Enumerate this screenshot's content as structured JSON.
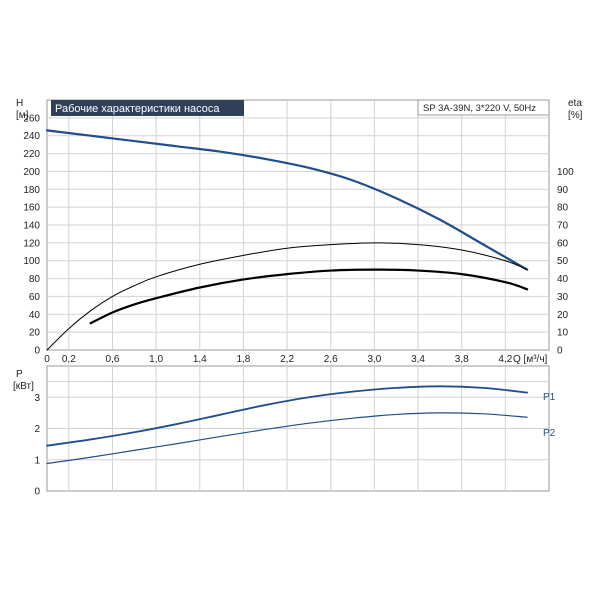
{
  "chart_data": [
    {
      "type": "line",
      "title": "Рабочие характеристики насоса",
      "model_label": "SP 3A-39N, 3*220 V, 50Hz",
      "xlabel": "Q [м³/ч]",
      "ylabel_left_symbol": "H",
      "ylabel_left_unit": "[м]",
      "ylabel_right_symbol": "eta",
      "ylabel_right_unit": "[%]",
      "xlim": [
        0,
        4.6
      ],
      "ylim_left": [
        0,
        280
      ],
      "ylim_right": [
        0,
        140
      ],
      "x_ticks": [
        "0",
        "0,2",
        "0,6",
        "1,0",
        "1,4",
        "1,8",
        "2,2",
        "2,6",
        "3,0",
        "3,4",
        "3,8",
        "4,2"
      ],
      "x_tick_values": [
        0,
        0.2,
        0.6,
        1.0,
        1.4,
        1.8,
        2.2,
        2.6,
        3.0,
        3.4,
        3.8,
        4.2
      ],
      "y_left_ticks": [
        0,
        20,
        40,
        60,
        80,
        100,
        120,
        140,
        160,
        180,
        200,
        220,
        240,
        260
      ],
      "y_right_ticks": [
        0,
        10,
        20,
        30,
        40,
        50,
        60,
        70,
        80,
        90,
        100
      ],
      "grid": true,
      "series": [
        {
          "axis": "left",
          "color": "#1f4e8c",
          "x": [
            0,
            0.4,
            0.8,
            1.2,
            1.6,
            2.0,
            2.4,
            2.8,
            3.2,
            3.6,
            4.0,
            4.4
          ],
          "values": [
            246,
            240,
            234,
            228,
            222,
            214,
            204,
            190,
            170,
            146,
            118,
            90
          ]
        },
        {
          "axis": "right",
          "color": "#000000",
          "x": [
            0,
            0.2,
            0.4,
            0.6,
            0.8,
            1.0,
            1.4,
            1.8,
            2.2,
            2.6,
            3.0,
            3.4,
            3.8,
            4.2,
            4.4
          ],
          "values": [
            0,
            12,
            22,
            30,
            36,
            41,
            48,
            53,
            57,
            59,
            60,
            59,
            56,
            50,
            45
          ]
        },
        {
          "axis": "right",
          "color": "#000000",
          "bold": true,
          "x": [
            0.4,
            0.6,
            0.8,
            1.0,
            1.4,
            1.8,
            2.2,
            2.6,
            3.0,
            3.4,
            3.8,
            4.2,
            4.4
          ],
          "values": [
            15,
            21,
            25.5,
            29,
            35,
            39.5,
            42.5,
            44.5,
            45,
            44.5,
            42.5,
            38,
            34
          ]
        }
      ]
    },
    {
      "type": "line",
      "ylabel_symbol": "P",
      "ylabel_unit": "[кВт]",
      "xlim": [
        0,
        4.6
      ],
      "ylim": [
        0,
        4
      ],
      "y_ticks": [
        0,
        1,
        2,
        3
      ],
      "x_tick_values": [
        0,
        0.2,
        0.6,
        1.0,
        1.4,
        1.8,
        2.2,
        2.6,
        3.0,
        3.4,
        3.8,
        4.2
      ],
      "grid": true,
      "series": [
        {
          "name": "P1",
          "color": "#1f4e8c",
          "x": [
            0,
            0.4,
            0.8,
            1.2,
            1.6,
            2.0,
            2.4,
            2.8,
            3.2,
            3.6,
            4.0,
            4.4
          ],
          "values": [
            1.45,
            1.65,
            1.88,
            2.15,
            2.45,
            2.75,
            3.0,
            3.18,
            3.3,
            3.35,
            3.3,
            3.15
          ]
        },
        {
          "name": "P2",
          "color": "#1f4e8c",
          "x": [
            0,
            0.4,
            0.8,
            1.2,
            1.6,
            2.0,
            2.4,
            2.8,
            3.2,
            3.6,
            4.0,
            4.4
          ],
          "values": [
            0.88,
            1.08,
            1.3,
            1.52,
            1.75,
            1.97,
            2.17,
            2.33,
            2.45,
            2.5,
            2.47,
            2.36
          ]
        }
      ]
    }
  ]
}
